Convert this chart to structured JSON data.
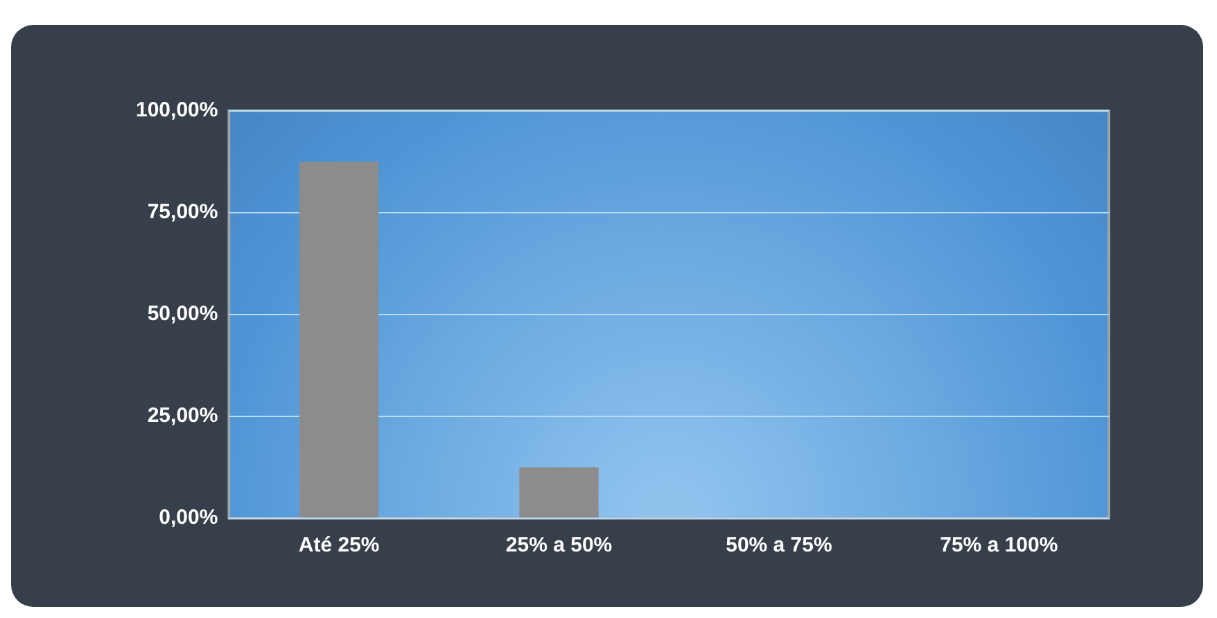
{
  "chart_data": {
    "type": "bar",
    "categories": [
      "Até 25%",
      "25% a 50%",
      "50% a 75%",
      "75% a 100%"
    ],
    "values": [
      87.5,
      12.5,
      0,
      0
    ],
    "color": "#8c8c8c",
    "ylim": [
      0,
      100
    ],
    "yticks": [
      {
        "value": 0,
        "label": "0,00%"
      },
      {
        "value": 25,
        "label": "25,00%"
      },
      {
        "value": 50,
        "label": "50,00%"
      },
      {
        "value": 75,
        "label": "75,00%"
      },
      {
        "value": 100,
        "label": "100,00%"
      }
    ],
    "grid": "y",
    "legend": false
  }
}
